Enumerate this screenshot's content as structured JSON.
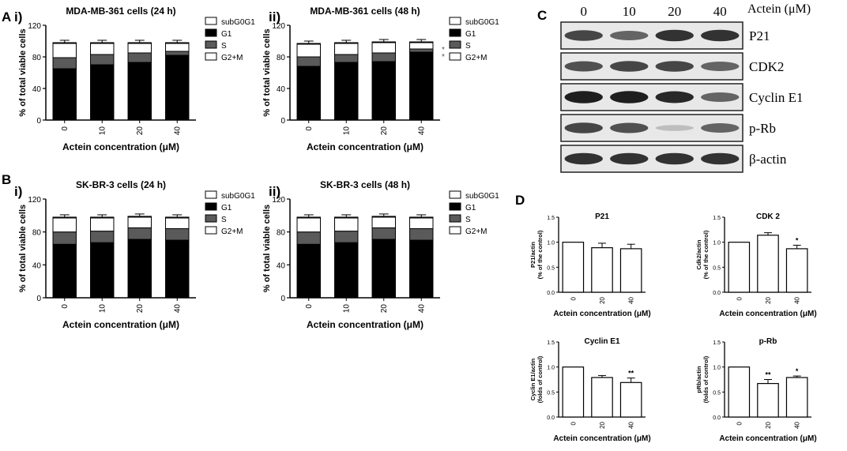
{
  "panels": {
    "A": "A",
    "B": "B",
    "C": "C",
    "D": "D",
    "i": "i)",
    "ii": "ii)"
  },
  "stacked_legend": [
    "subG0G1",
    "G1",
    "S",
    "G2+M"
  ],
  "colors": {
    "subG0G1": "#ffffff",
    "G1": "#000000",
    "S": "#5a5a5a",
    "G2+M": "#ffffff"
  },
  "chart_data": [
    {
      "id": "Ai",
      "type": "bar",
      "stacked": true,
      "title": "MDA-MB-361 cells (24 h)",
      "xlabel": "Actein concentration (μM)",
      "ylabel": "% of total viable cells",
      "ylim": [
        0,
        120
      ],
      "yticks": [
        0,
        40,
        80,
        120
      ],
      "categories": [
        "0",
        "10",
        "20",
        "40"
      ],
      "series": [
        {
          "name": "G1",
          "values": [
            65,
            70,
            73,
            82
          ]
        },
        {
          "name": "S",
          "values": [
            14,
            13,
            12,
            5
          ]
        },
        {
          "name": "G2+M",
          "values": [
            18,
            14,
            12,
            10
          ]
        },
        {
          "name": "subG0G1",
          "values": [
            1,
            1,
            1,
            1
          ]
        }
      ],
      "legend": "right"
    },
    {
      "id": "Aii",
      "type": "bar",
      "stacked": true,
      "title": "MDA-MB-361 cells (48 h)",
      "xlabel": "Actein concentration (μM)",
      "ylabel": "% of total viable cells",
      "ylim": [
        0,
        120
      ],
      "yticks": [
        0,
        40,
        80,
        120
      ],
      "categories": [
        "0",
        "10",
        "20",
        "40"
      ],
      "series": [
        {
          "name": "G1",
          "values": [
            68,
            73,
            74,
            86
          ]
        },
        {
          "name": "S",
          "values": [
            12,
            10,
            11,
            4
          ]
        },
        {
          "name": "G2+M",
          "values": [
            16,
            14,
            13,
            8
          ]
        },
        {
          "name": "subG0G1",
          "values": [
            1,
            1,
            1,
            1
          ]
        }
      ],
      "annotations": [
        "*",
        "*"
      ],
      "legend": "right"
    },
    {
      "id": "Bi",
      "type": "bar",
      "stacked": true,
      "title": "SK-BR-3 cells (24 h)",
      "xlabel": "Actein concentration (μM)",
      "ylabel": "% of total viable cells",
      "ylim": [
        0,
        120
      ],
      "yticks": [
        0,
        40,
        80,
        120
      ],
      "categories": [
        "0",
        "10",
        "20",
        "40"
      ],
      "series": [
        {
          "name": "G1",
          "values": [
            65,
            67,
            71,
            70
          ]
        },
        {
          "name": "S",
          "values": [
            15,
            14,
            14,
            14
          ]
        },
        {
          "name": "G2+M",
          "values": [
            17,
            16,
            13,
            13
          ]
        },
        {
          "name": "subG0G1",
          "values": [
            1,
            1,
            1,
            1
          ]
        }
      ],
      "legend": "right"
    },
    {
      "id": "Bii",
      "type": "bar",
      "stacked": true,
      "title": "SK-BR-3 cells (48 h)",
      "xlabel": "Actein concentration (μM)",
      "ylabel": "% of total viable cells",
      "ylim": [
        0,
        120
      ],
      "yticks": [
        0,
        40,
        80,
        120
      ],
      "categories": [
        "0",
        "10",
        "20",
        "40"
      ],
      "series": [
        {
          "name": "G1",
          "values": [
            65,
            67,
            71,
            70
          ]
        },
        {
          "name": "S",
          "values": [
            15,
            14,
            14,
            14
          ]
        },
        {
          "name": "G2+M",
          "values": [
            17,
            16,
            13,
            13
          ]
        },
        {
          "name": "subG0G1",
          "values": [
            1,
            1,
            1,
            1
          ]
        }
      ],
      "legend": "right"
    },
    {
      "id": "D1",
      "type": "bar",
      "title": "P21",
      "xlabel": "Actein concentration (μM)",
      "ylabel": "P21/actin (% of the control)",
      "ylim": [
        0,
        1.5
      ],
      "yticks": [
        0,
        0.5,
        1.0,
        1.5
      ],
      "categories": [
        "0",
        "20",
        "40"
      ],
      "values": [
        1.0,
        0.89,
        0.87
      ],
      "errors": [
        0,
        0.09,
        0.09
      ],
      "sig": [
        "",
        "",
        ""
      ]
    },
    {
      "id": "D2",
      "type": "bar",
      "title": "CDK 2",
      "xlabel": "Actein concentration (μM)",
      "ylabel": "Cdk2/actin (% of the control)",
      "ylim": [
        0,
        1.5
      ],
      "yticks": [
        0,
        0.5,
        1.0,
        1.5
      ],
      "categories": [
        "0",
        "20",
        "40"
      ],
      "values": [
        1.0,
        1.14,
        0.87
      ],
      "errors": [
        0,
        0.05,
        0.07
      ],
      "sig": [
        "",
        "",
        "*"
      ]
    },
    {
      "id": "D3",
      "type": "bar",
      "title": "Cyclin E1",
      "xlabel": "Actein concentration (μM)",
      "ylabel": "Cyclin E1/actin (folds of control)",
      "ylim": [
        0,
        1.5
      ],
      "yticks": [
        0,
        0.5,
        1.0,
        1.5
      ],
      "categories": [
        "0",
        "20",
        "40"
      ],
      "values": [
        1.0,
        0.79,
        0.69
      ],
      "errors": [
        0,
        0.04,
        0.09
      ],
      "sig": [
        "",
        "",
        "**"
      ]
    },
    {
      "id": "D4",
      "type": "bar",
      "title": "p-Rb",
      "xlabel": "Actein concentration (μM)",
      "ylabel": "pRb/actin (folds of control)",
      "ylim": [
        0,
        1.5
      ],
      "yticks": [
        0,
        0.5,
        1.0,
        1.5
      ],
      "categories": [
        "0",
        "20",
        "40"
      ],
      "values": [
        1.0,
        0.67,
        0.79
      ],
      "errors": [
        0,
        0.08,
        0.03
      ],
      "sig": [
        "",
        "**",
        "*"
      ]
    }
  ],
  "blot": {
    "lanes": [
      "0",
      "10",
      "20",
      "40"
    ],
    "unit": "Actein (μM)",
    "proteins": [
      {
        "name": "P21",
        "intensity": [
          0.75,
          0.6,
          0.85,
          0.85
        ]
      },
      {
        "name": "CDK2",
        "intensity": [
          0.7,
          0.75,
          0.75,
          0.6
        ]
      },
      {
        "name": "Cyclin E1",
        "intensity": [
          0.95,
          0.95,
          0.9,
          0.6
        ]
      },
      {
        "name": "p-Rb",
        "intensity": [
          0.75,
          0.7,
          0.15,
          0.6
        ]
      },
      {
        "name": "β-actin",
        "intensity": [
          0.85,
          0.85,
          0.85,
          0.85
        ]
      }
    ]
  }
}
